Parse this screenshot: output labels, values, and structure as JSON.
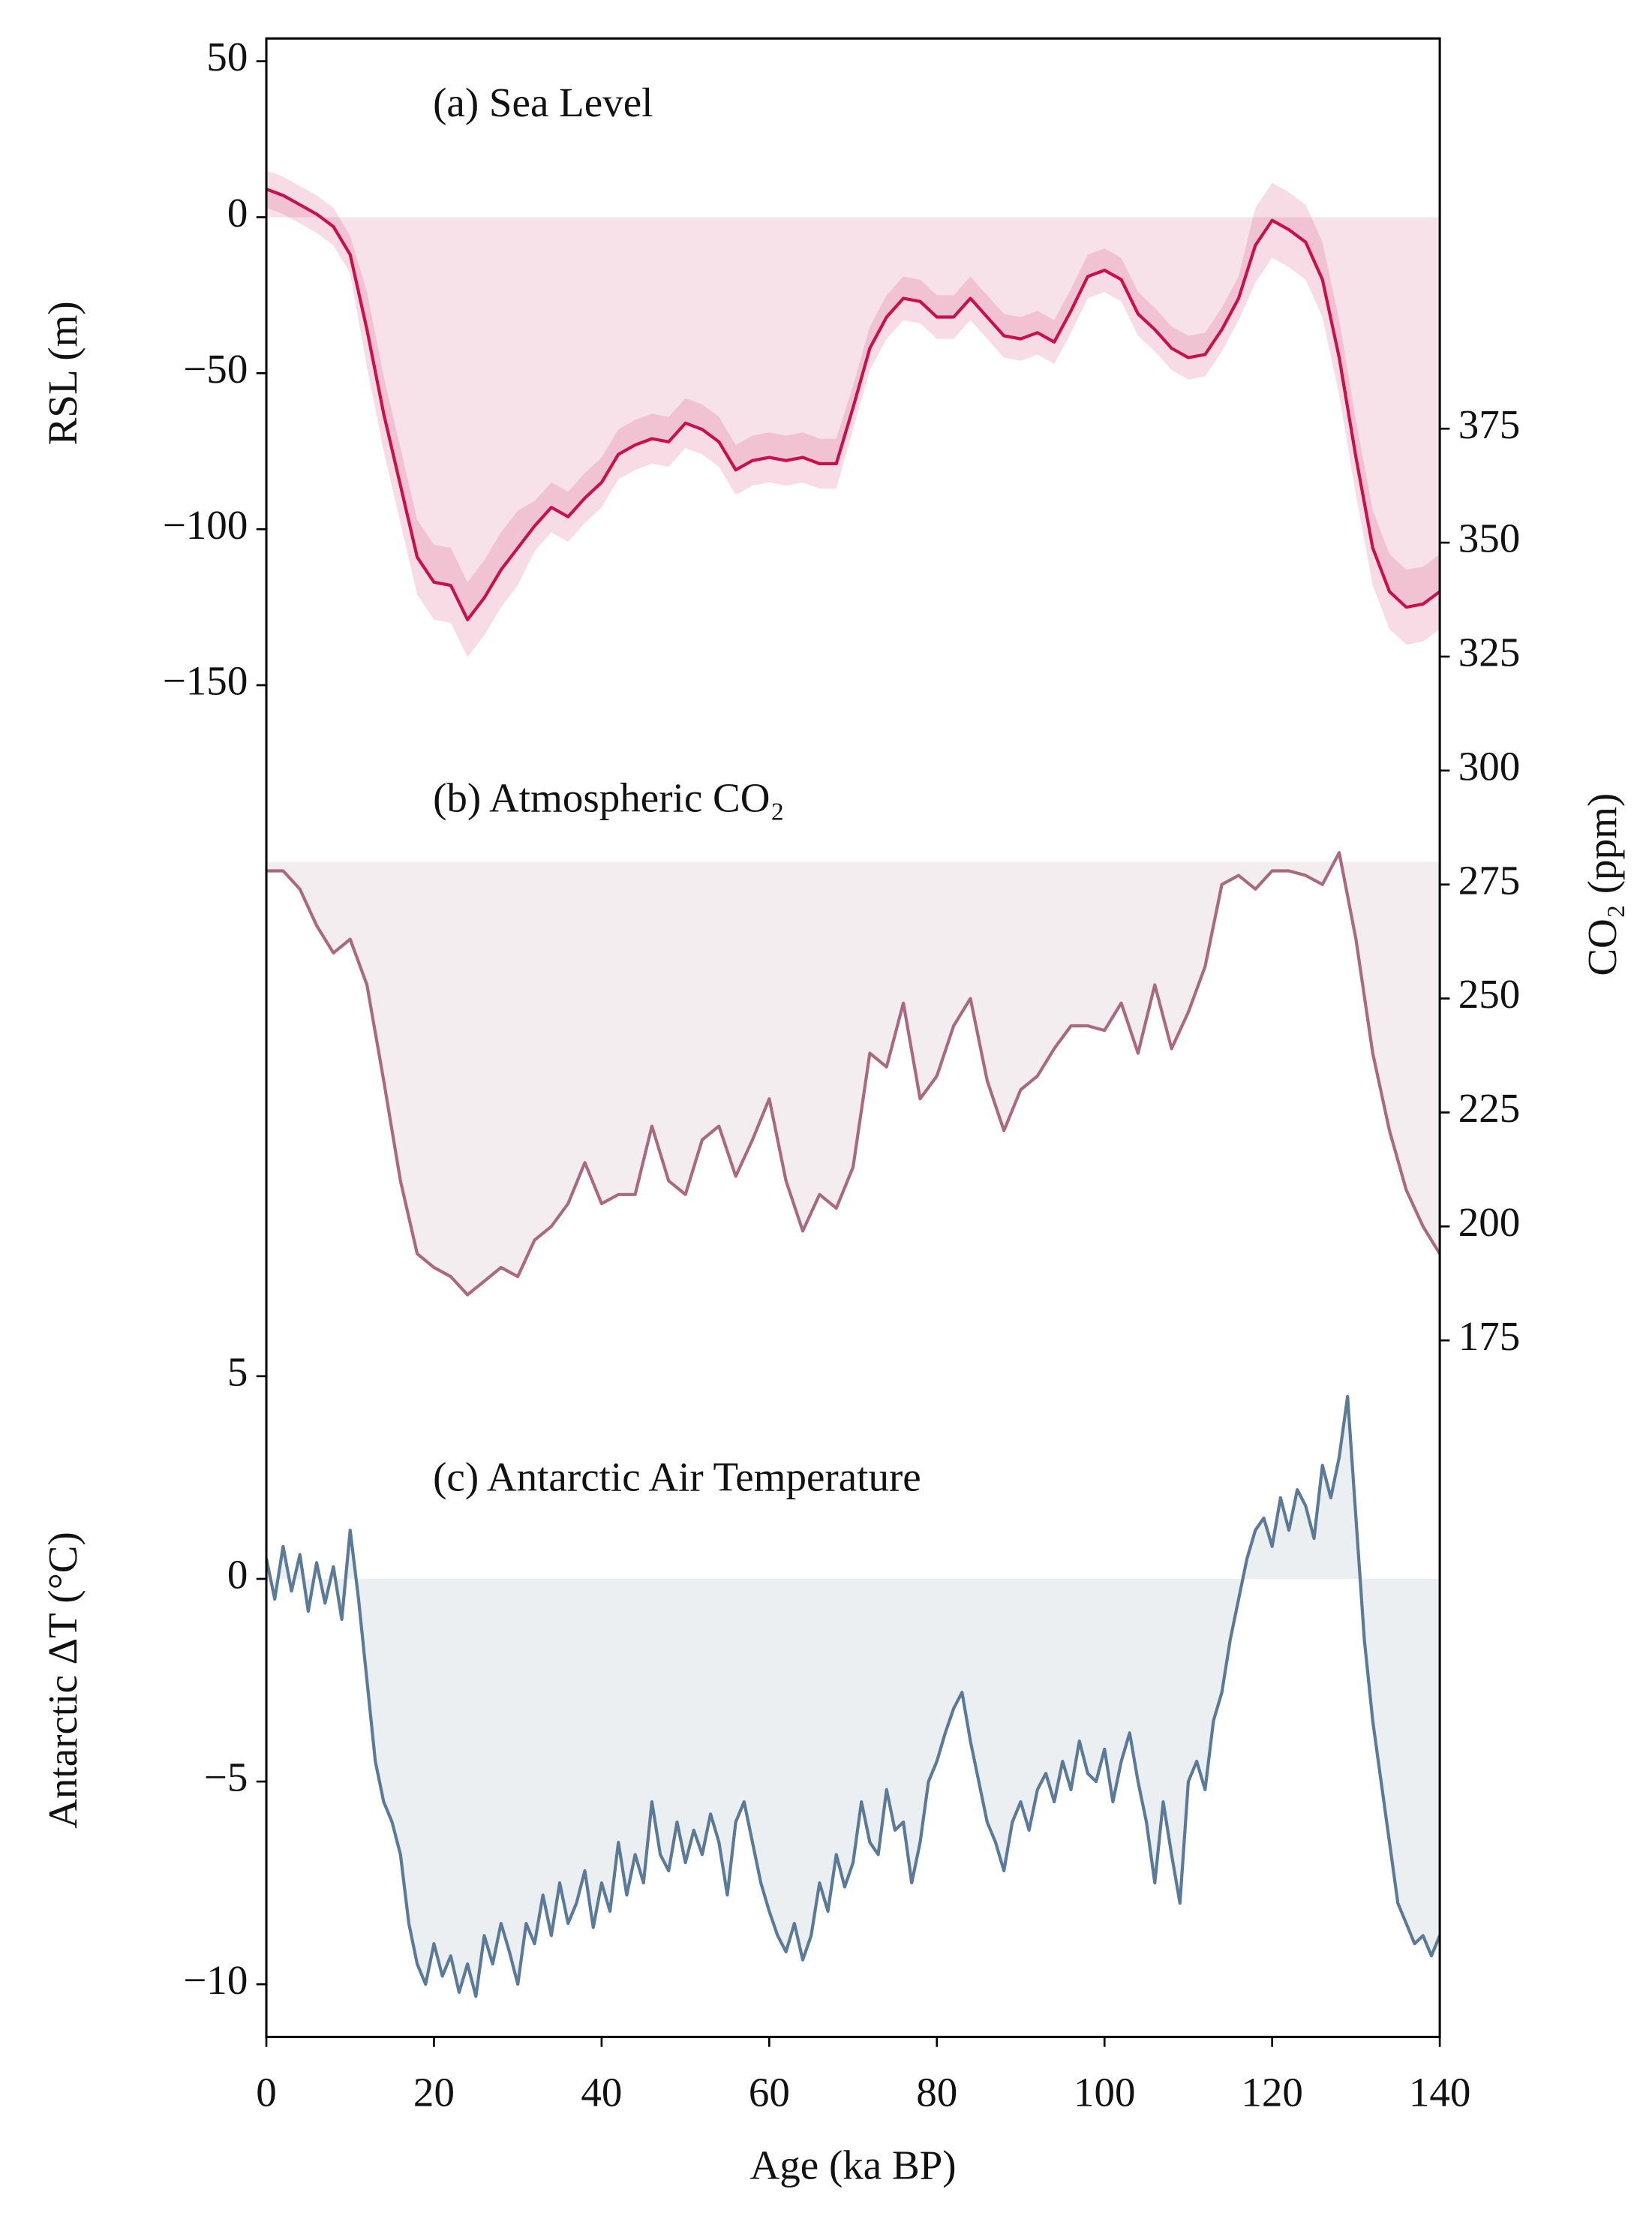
{
  "chart_data": [
    {
      "type": "line",
      "annotation": "(a) Sea Level",
      "ylabel": "RSL (m)",
      "y_axis_side": "left",
      "fill_baseline": 0,
      "xlim": [
        0,
        140
      ],
      "ylim": [
        -583.3,
        57.3
      ],
      "yticks": [
        50,
        0,
        {
          "value": -50,
          "label": "−50"
        },
        {
          "value": -100,
          "label": "−100"
        },
        {
          "value": -150,
          "label": "−150"
        }
      ],
      "x": [
        0,
        2,
        4,
        6,
        8,
        10,
        12,
        14,
        16,
        18,
        20,
        22,
        24,
        26,
        28,
        30,
        32,
        34,
        36,
        38,
        40,
        42,
        44,
        46,
        48,
        50,
        52,
        54,
        56,
        58,
        60,
        62,
        64,
        66,
        68,
        70,
        72,
        74,
        76,
        78,
        80,
        82,
        84,
        86,
        88,
        90,
        92,
        94,
        96,
        98,
        100,
        102,
        104,
        106,
        108,
        110,
        112,
        114,
        116,
        118,
        120,
        122,
        124,
        126,
        128,
        130,
        132,
        134,
        136,
        138,
        140
      ],
      "series": [
        {
          "color": "#c8104e",
          "values": [
            9,
            7,
            4,
            1,
            -3,
            -12,
            -36,
            -63,
            -86,
            -109,
            -117,
            -118,
            -129,
            -122,
            -113,
            -106,
            -99,
            -93,
            -96,
            -90,
            -85,
            -76,
            -73,
            -71,
            -72,
            -66,
            -68,
            -72,
            -81,
            -78,
            -77,
            -78,
            -77,
            -79,
            -79,
            -61,
            -42,
            -32,
            -26,
            -27,
            -32,
            -32,
            -26,
            -32,
            -38,
            -39,
            -37,
            -40,
            -30,
            -19,
            -17,
            -20,
            -31,
            -36,
            -42,
            -45,
            -44,
            -36,
            -26,
            -9,
            -1,
            -4,
            -8,
            -20,
            -45,
            -77,
            -106,
            -120,
            -125,
            -124,
            -120
          ],
          "upper": [
            15,
            13,
            10,
            7,
            3,
            -6,
            -24,
            -51,
            -74,
            -97,
            -105,
            -106,
            -117,
            -110,
            -101,
            -94,
            -91,
            -85,
            -88,
            -82,
            -77,
            -68,
            -65,
            -63,
            -64,
            -58,
            -60,
            -64,
            -73,
            -70,
            -69,
            -70,
            -69,
            -71,
            -71,
            -54,
            -35,
            -25,
            -19,
            -20,
            -25,
            -25,
            -19,
            -25,
            -31,
            -32,
            -30,
            -33,
            -23,
            -12,
            -10,
            -13,
            -24,
            -29,
            -35,
            -38,
            -37,
            -29,
            -19,
            3,
            11,
            8,
            4,
            -8,
            -33,
            -65,
            -94,
            -108,
            -113,
            -112,
            -108
          ],
          "lower": [
            3,
            1,
            -2,
            -5,
            -9,
            -18,
            -48,
            -75,
            -98,
            -121,
            -129,
            -130,
            -141,
            -134,
            -125,
            -118,
            -107,
            -101,
            -104,
            -98,
            -93,
            -84,
            -81,
            -79,
            -80,
            -74,
            -76,
            -80,
            -89,
            -86,
            -85,
            -86,
            -85,
            -87,
            -87,
            -68,
            -49,
            -39,
            -33,
            -34,
            -39,
            -39,
            -33,
            -39,
            -45,
            -46,
            -44,
            -47,
            -37,
            -26,
            -24,
            -27,
            -38,
            -43,
            -49,
            -52,
            -51,
            -43,
            -33,
            -21,
            -13,
            -16,
            -20,
            -32,
            -57,
            -89,
            -118,
            -132,
            -137,
            -136,
            -132
          ]
        }
      ]
    },
    {
      "type": "line",
      "annotation": "(b) Atmospheric CO₂",
      "ylabel": "CO₂ (ppm)",
      "y_axis_side": "right",
      "fill_baseline": 280,
      "xlim": [
        0,
        140
      ],
      "ylim": [
        22.2,
        460.6
      ],
      "yticks": [
        175,
        200,
        225,
        250,
        275,
        300,
        325,
        350,
        375
      ],
      "x": [
        0,
        2,
        4,
        6,
        8,
        10,
        12,
        14,
        16,
        18,
        20,
        22,
        24,
        26,
        28,
        30,
        32,
        34,
        36,
        38,
        40,
        42,
        44,
        46,
        48,
        50,
        52,
        54,
        56,
        58,
        60,
        62,
        64,
        66,
        68,
        70,
        72,
        74,
        76,
        78,
        80,
        82,
        84,
        86,
        88,
        90,
        92,
        94,
        96,
        98,
        100,
        102,
        104,
        106,
        108,
        110,
        112,
        114,
        116,
        118,
        120,
        122,
        124,
        126,
        128,
        130,
        132,
        134,
        136,
        138,
        140
      ],
      "series": [
        {
          "color": "#a86a7c",
          "values": [
            278,
            278,
            274,
            266,
            260,
            263,
            253,
            232,
            210,
            194,
            191,
            189,
            185,
            188,
            191,
            189,
            197,
            200,
            205,
            214,
            205,
            207,
            207,
            222,
            210,
            207,
            219,
            222,
            211,
            219,
            228,
            210,
            199,
            207,
            204,
            213,
            238,
            235,
            249,
            228,
            233,
            244,
            250,
            232,
            221,
            230,
            233,
            239,
            244,
            244,
            243,
            249,
            238,
            253,
            239,
            247,
            257,
            275,
            277,
            274,
            278,
            278,
            277,
            275,
            282,
            263,
            238,
            221,
            208,
            200,
            194
          ]
        }
      ]
    },
    {
      "type": "line",
      "annotation": "(c) Antarctic Air Temperature",
      "ylabel": "Antarctic ΔT (°C)",
      "y_axis_side": "left",
      "fill_baseline": 0,
      "xlabel": "Age (ka BP)",
      "xlim": [
        0,
        140
      ],
      "xticks": [
        0,
        20,
        40,
        60,
        80,
        100,
        120,
        140
      ],
      "ylim": [
        -11.3,
        38
      ],
      "yticks": [
        5,
        0,
        {
          "value": -5,
          "label": "−5"
        },
        {
          "value": -10,
          "label": "−10"
        }
      ],
      "x": [
        0,
        1,
        2,
        3,
        4,
        5,
        6,
        7,
        8,
        9,
        10,
        11,
        12,
        13,
        14,
        15,
        16,
        17,
        18,
        19,
        20,
        21,
        22,
        23,
        24,
        25,
        26,
        27,
        28,
        29,
        30,
        31,
        32,
        33,
        34,
        35,
        36,
        37,
        38,
        39,
        40,
        41,
        42,
        43,
        44,
        45,
        46,
        47,
        48,
        49,
        50,
        51,
        52,
        53,
        54,
        55,
        56,
        57,
        58,
        59,
        60,
        61,
        62,
        63,
        64,
        65,
        66,
        67,
        68,
        69,
        70,
        71,
        72,
        73,
        74,
        75,
        76,
        77,
        78,
        79,
        80,
        81,
        82,
        83,
        84,
        85,
        86,
        87,
        88,
        89,
        90,
        91,
        92,
        93,
        94,
        95,
        96,
        97,
        98,
        99,
        100,
        101,
        102,
        103,
        104,
        105,
        106,
        107,
        108,
        109,
        110,
        111,
        112,
        113,
        114,
        115,
        116,
        117,
        118,
        119,
        120,
        121,
        122,
        123,
        124,
        125,
        126,
        127,
        128,
        129,
        130,
        131,
        132,
        133,
        134,
        135,
        136,
        137,
        138,
        139,
        140
      ],
      "series": [
        {
          "color": "#5b7a98",
          "values": [
            0.5,
            -0.5,
            0.8,
            -0.3,
            0.6,
            -0.8,
            0.4,
            -0.6,
            0.3,
            -1.0,
            1.2,
            -0.5,
            -2.5,
            -4.5,
            -5.5,
            -6.0,
            -6.8,
            -8.5,
            -9.5,
            -10.0,
            -9.0,
            -9.8,
            -9.3,
            -10.2,
            -9.5,
            -10.3,
            -8.8,
            -9.5,
            -8.5,
            -9.2,
            -10.0,
            -8.5,
            -9.0,
            -7.8,
            -8.8,
            -7.5,
            -8.5,
            -8.0,
            -7.2,
            -8.6,
            -7.5,
            -8.2,
            -6.5,
            -7.8,
            -6.8,
            -7.5,
            -5.5,
            -6.8,
            -7.2,
            -6.0,
            -7.0,
            -6.2,
            -6.8,
            -5.8,
            -6.5,
            -7.8,
            -6.0,
            -5.5,
            -6.5,
            -7.5,
            -8.2,
            -8.8,
            -9.2,
            -8.5,
            -9.4,
            -8.8,
            -7.5,
            -8.2,
            -6.8,
            -7.6,
            -7.0,
            -5.5,
            -6.5,
            -6.8,
            -5.2,
            -6.2,
            -6.0,
            -7.5,
            -6.5,
            -5.0,
            -4.5,
            -3.8,
            -3.2,
            -2.8,
            -4.0,
            -5.0,
            -6.0,
            -6.5,
            -7.2,
            -6.0,
            -5.5,
            -6.2,
            -5.2,
            -4.8,
            -5.5,
            -4.5,
            -5.2,
            -4.0,
            -4.8,
            -5.0,
            -4.2,
            -5.5,
            -4.5,
            -3.8,
            -5.0,
            -6.0,
            -7.5,
            -5.5,
            -6.8,
            -8.0,
            -5.0,
            -4.5,
            -5.2,
            -3.5,
            -2.8,
            -1.5,
            -0.5,
            0.5,
            1.2,
            1.5,
            0.8,
            2.0,
            1.2,
            2.2,
            1.8,
            1.0,
            2.8,
            2.0,
            3.0,
            4.5,
            1.5,
            -1.5,
            -3.5,
            -5.0,
            -6.5,
            -8.0,
            -8.5,
            -9.0,
            -8.8,
            -9.3,
            -8.8
          ]
        }
      ]
    }
  ]
}
